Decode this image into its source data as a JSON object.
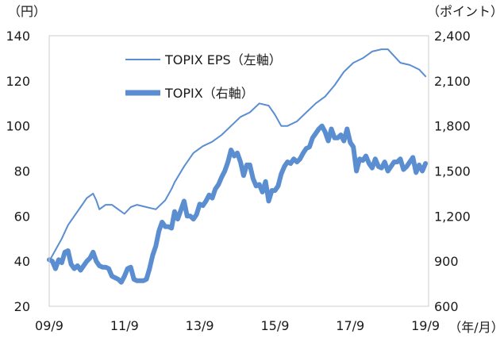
{
  "chart_data": {
    "type": "line",
    "left_unit": "（円）",
    "right_unit": "（ポイント）",
    "x_unit": "（年/月）",
    "x_ticks": [
      "09/9",
      "11/9",
      "13/9",
      "15/9",
      "17/9",
      "19/9"
    ],
    "y_left": {
      "ticks": [
        140,
        120,
        100,
        80,
        60,
        40,
        20
      ],
      "range": [
        20,
        140
      ]
    },
    "y_right": {
      "ticks": [
        "2,400",
        "2,100",
        "1,800",
        "1,500",
        "1,200",
        "900",
        "600"
      ],
      "range": [
        600,
        2400
      ]
    },
    "x_range": [
      2009.667,
      2019.75
    ],
    "grid": false,
    "legend_position": "top-left",
    "series": [
      {
        "name": "TOPIX EPS（左軸）",
        "axis": "left",
        "color": "#5b8ed0",
        "width": 2,
        "x": [
          2009.667,
          2009.833,
          2010.0,
          2010.167,
          2010.333,
          2010.5,
          2010.667,
          2010.833,
          2010.917,
          2011.0,
          2011.167,
          2011.333,
          2011.5,
          2011.667,
          2011.833,
          2012.0,
          2012.25,
          2012.5,
          2012.75,
          2012.917,
          2013.0,
          2013.25,
          2013.5,
          2013.75,
          2014.0,
          2014.25,
          2014.5,
          2014.75,
          2015.0,
          2015.25,
          2015.5,
          2015.667,
          2015.833,
          2016.0,
          2016.25,
          2016.5,
          2016.75,
          2017.0,
          2017.25,
          2017.5,
          2017.75,
          2018.0,
          2018.25,
          2018.5,
          2018.667,
          2018.833,
          2019.0,
          2019.25,
          2019.5,
          2019.667
        ],
        "values": [
          40,
          45,
          50,
          56,
          60,
          64,
          68,
          70,
          67,
          63,
          65,
          65,
          63,
          61,
          64,
          65,
          64,
          63,
          67,
          72,
          75,
          82,
          88,
          91,
          93,
          96,
          100,
          104,
          106,
          110,
          109,
          105,
          100,
          100,
          102,
          106,
          110,
          113,
          118,
          124,
          128,
          130,
          133,
          134,
          134,
          131,
          128,
          127,
          125,
          122
        ]
      },
      {
        "name": "TOPIX（右軸）",
        "axis": "right",
        "color": "#5b8ed0",
        "width": 6,
        "x": [
          2009.667,
          2009.75,
          2009.833,
          2009.917,
          2010.0,
          2010.083,
          2010.167,
          2010.25,
          2010.333,
          2010.417,
          2010.5,
          2010.583,
          2010.667,
          2010.75,
          2010.833,
          2010.917,
          2011.0,
          2011.083,
          2011.167,
          2011.25,
          2011.333,
          2011.417,
          2011.5,
          2011.583,
          2011.667,
          2011.75,
          2011.833,
          2011.917,
          2012.0,
          2012.083,
          2012.167,
          2012.25,
          2012.333,
          2012.417,
          2012.5,
          2012.583,
          2012.667,
          2012.75,
          2012.833,
          2012.917,
          2013.0,
          2013.083,
          2013.167,
          2013.25,
          2013.333,
          2013.417,
          2013.5,
          2013.583,
          2013.667,
          2013.75,
          2013.833,
          2013.917,
          2014.0,
          2014.083,
          2014.167,
          2014.25,
          2014.333,
          2014.417,
          2014.5,
          2014.583,
          2014.667,
          2014.75,
          2014.833,
          2014.917,
          2015.0,
          2015.083,
          2015.167,
          2015.25,
          2015.333,
          2015.417,
          2015.5,
          2015.583,
          2015.667,
          2015.75,
          2015.833,
          2015.917,
          2016.0,
          2016.083,
          2016.167,
          2016.25,
          2016.333,
          2016.417,
          2016.5,
          2016.583,
          2016.667,
          2016.75,
          2016.833,
          2016.917,
          2017.0,
          2017.083,
          2017.167,
          2017.25,
          2017.333,
          2017.417,
          2017.5,
          2017.583,
          2017.667,
          2017.75,
          2017.833,
          2017.917,
          2018.0,
          2018.083,
          2018.167,
          2018.25,
          2018.333,
          2018.417,
          2018.5,
          2018.583,
          2018.667,
          2018.75,
          2018.833,
          2018.917,
          2019.0,
          2019.083,
          2019.167,
          2019.25,
          2019.333,
          2019.417,
          2019.5,
          2019.583,
          2019.667
        ],
        "values": [
          910,
          900,
          850,
          910,
          890,
          960,
          970,
          880,
          850,
          870,
          840,
          870,
          900,
          920,
          960,
          900,
          870,
          860,
          860,
          850,
          800,
          790,
          780,
          760,
          800,
          850,
          860,
          780,
          770,
          770,
          770,
          780,
          850,
          940,
          1000,
          1100,
          1160,
          1130,
          1130,
          1120,
          1230,
          1180,
          1240,
          1300,
          1200,
          1200,
          1180,
          1210,
          1280,
          1270,
          1300,
          1340,
          1320,
          1380,
          1410,
          1460,
          1500,
          1560,
          1640,
          1600,
          1620,
          1560,
          1470,
          1540,
          1540,
          1450,
          1400,
          1410,
          1360,
          1430,
          1300,
          1370,
          1370,
          1400,
          1480,
          1530,
          1560,
          1550,
          1580,
          1560,
          1580,
          1620,
          1650,
          1660,
          1720,
          1750,
          1780,
          1800,
          1760,
          1700,
          1780,
          1720,
          1720,
          1740,
          1700,
          1780,
          1690,
          1660,
          1500,
          1580,
          1570,
          1600,
          1550,
          1520,
          1580,
          1530,
          1520,
          1560,
          1500,
          1530,
          1560,
          1560,
          1580,
          1510,
          1530,
          1560,
          1590,
          1490,
          1540,
          1500,
          1550
        ]
      }
    ]
  }
}
